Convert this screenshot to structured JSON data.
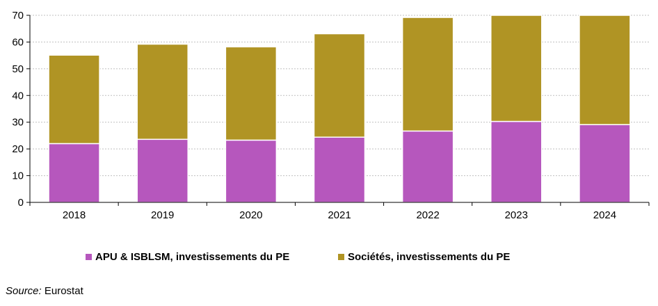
{
  "chart_data": {
    "type": "bar",
    "stacked": true,
    "categories": [
      "2018",
      "2019",
      "2020",
      "2021",
      "2022",
      "2023",
      "2024"
    ],
    "series": [
      {
        "name": "APU & ISBLSM, investissements du PE",
        "color": "#b657bd",
        "values": [
          22.0,
          23.6,
          23.3,
          24.4,
          26.7,
          30.3,
          29.1
        ]
      },
      {
        "name": "Sociétés, investissements du PE",
        "color": "#b09424",
        "values": [
          33.1,
          35.6,
          34.9,
          38.7,
          42.5,
          39.7,
          40.9
        ]
      }
    ],
    "ylim": [
      0,
      70
    ],
    "yticks": [
      0,
      10,
      20,
      30,
      40,
      50,
      60,
      70
    ],
    "grid": true,
    "legend_position": "bottom"
  },
  "source": {
    "label": "Source:",
    "text": "Eurostat"
  }
}
